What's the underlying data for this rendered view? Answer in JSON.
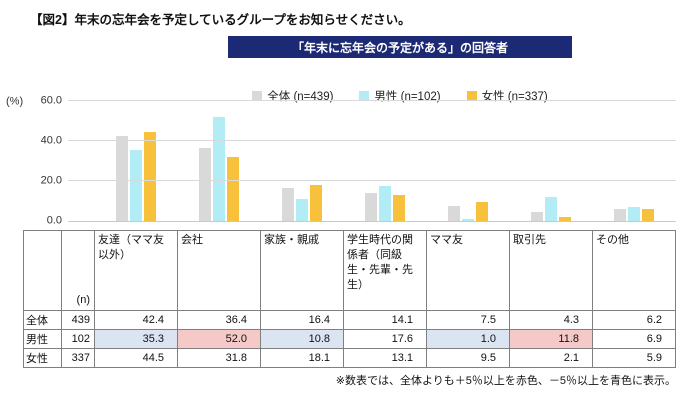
{
  "page": {
    "title": "【図2】年末の忘年会を予定しているグループをお知らせください。",
    "banner": "「年末に忘年会の予定がある」の回答者",
    "banner_color": "#1c2974",
    "footnote": "※数表では、全体よりも＋5％以上を赤色、－5％以上を青色に表示。"
  },
  "chart_data": {
    "type": "bar",
    "title": "「年末に忘年会の予定がある」の回答者",
    "ylabel": "(%)",
    "ylim": [
      0,
      60
    ],
    "yticks": [
      0.0,
      20.0,
      40.0,
      60.0
    ],
    "grid": true,
    "legend_position": "top",
    "categories": [
      "友達（ママ友以外）",
      "会社",
      "家族・親戚",
      "学生時代の関係者（同級生・先輩・先生）",
      "ママ友",
      "取引先",
      "その他"
    ],
    "series": [
      {
        "name": "全体 (n=439)",
        "color": "#d9d9d9",
        "values": [
          42.4,
          36.4,
          16.4,
          14.1,
          7.5,
          4.3,
          6.2
        ]
      },
      {
        "name": "男性 (n=102)",
        "color": "#b2ecf5",
        "values": [
          35.3,
          52.0,
          10.8,
          17.6,
          1.0,
          11.8,
          6.9
        ]
      },
      {
        "name": "女性 (n=337)",
        "color": "#f7c13b",
        "values": [
          44.5,
          31.8,
          18.1,
          13.1,
          9.5,
          2.1,
          5.9
        ]
      }
    ]
  },
  "table": {
    "n_label": "(n)",
    "col_headers": [
      "友達（ママ友以外）",
      "会社",
      "家族・親戚",
      "学生時代の関係者（同級生・先輩・先生）",
      "ママ友",
      "取引先",
      "その他"
    ],
    "rows": [
      {
        "label": "全体",
        "n": "439",
        "values": [
          "42.4",
          "36.4",
          "16.4",
          "14.1",
          "7.5",
          "4.3",
          "6.2"
        ],
        "highlights": [
          "",
          "",
          "",
          "",
          "",
          "",
          ""
        ]
      },
      {
        "label": "男性",
        "n": "102",
        "values": [
          "35.3",
          "52.0",
          "10.8",
          "17.6",
          "1.0",
          "11.8",
          "6.9"
        ],
        "highlights": [
          "blue",
          "red",
          "blue",
          "",
          "blue",
          "red",
          ""
        ]
      },
      {
        "label": "女性",
        "n": "337",
        "values": [
          "44.5",
          "31.8",
          "18.1",
          "13.1",
          "9.5",
          "2.1",
          "5.9"
        ],
        "highlights": [
          "",
          "",
          "",
          "",
          "",
          "",
          ""
        ]
      }
    ],
    "highlight_colors": {
      "red": "#f6c9c9",
      "blue": "#dbe5f2"
    }
  }
}
